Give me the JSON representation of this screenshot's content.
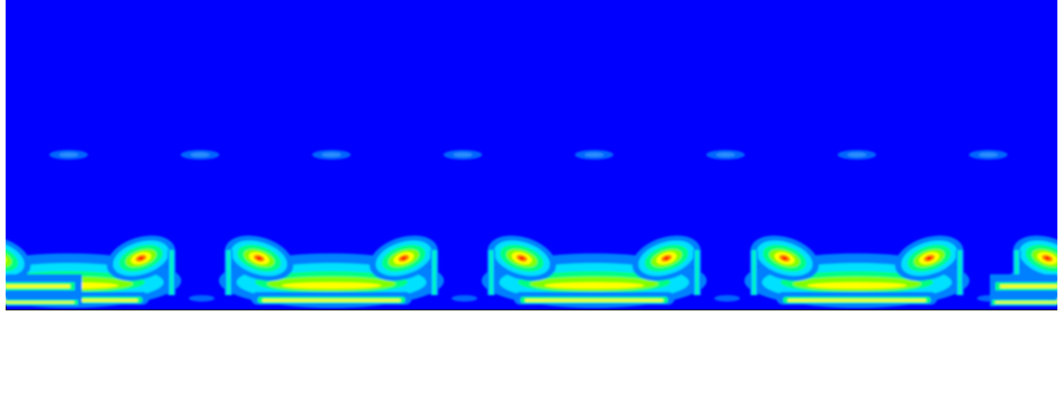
{
  "figure": {
    "colormap": [
      "#0000ff",
      "#0080ff",
      "#00e0ff",
      "#00ff80",
      "#80ff00",
      "#ffff00",
      "#ff8000",
      "#ff0000"
    ],
    "background_level": 0,
    "repeating_units": 4,
    "unit_features": {
      "upper_blob_level": 1,
      "side_loop_peak_level": 7,
      "central_band_peak_level": 5,
      "bottom_band_peak_level": 5
    }
  }
}
